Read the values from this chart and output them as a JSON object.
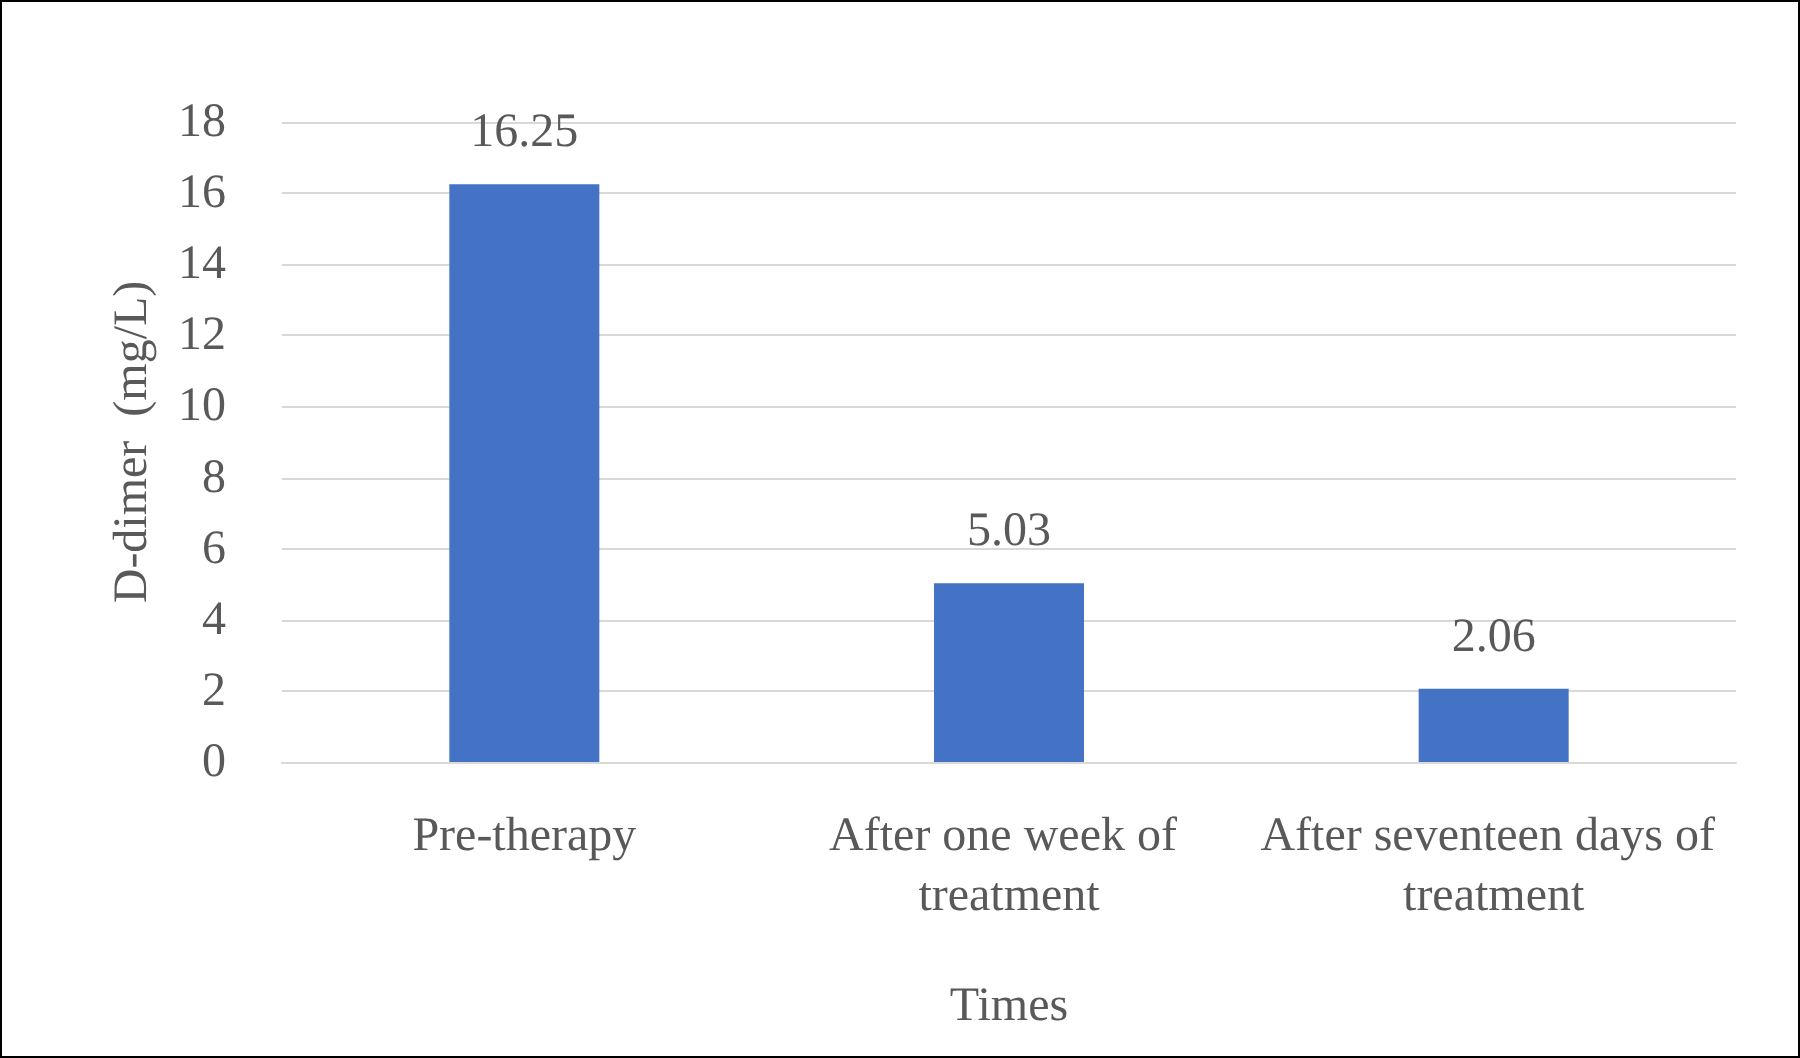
{
  "chart_data": {
    "type": "bar",
    "xlabel": "Times",
    "ylabel": "D-dimer  (mg/L)",
    "categories": [
      "Pre-therapy",
      "After one week of treatment",
      "After seventeen days of treatment"
    ],
    "values": [
      16.25,
      5.03,
      2.06
    ],
    "color": "#4472c4",
    "ylim": [
      0,
      18
    ],
    "yticks": [
      0,
      2,
      4,
      6,
      8,
      10,
      12,
      14,
      16,
      18
    ],
    "grid": "y",
    "data_labels": true
  }
}
